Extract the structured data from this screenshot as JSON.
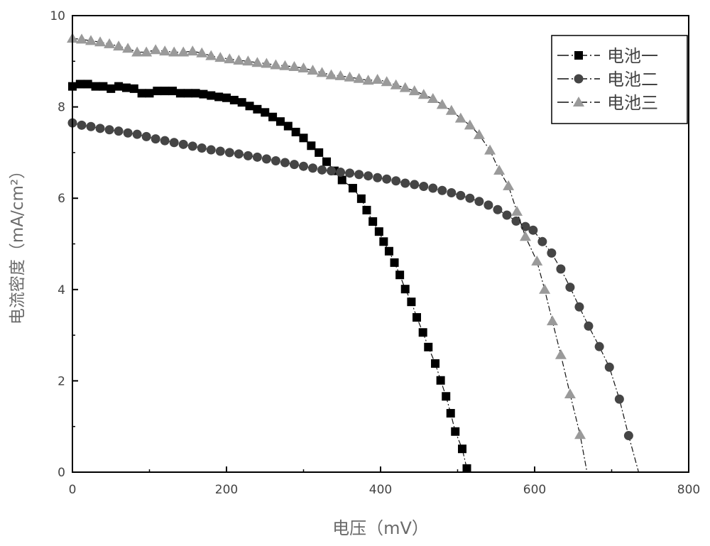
{
  "chart_data": {
    "type": "line",
    "title": "",
    "xlabel": "电压（mV）",
    "ylabel": "电流密度（mA/cm²）",
    "xlim": [
      0,
      800
    ],
    "ylim": [
      0,
      10
    ],
    "xticks": [
      "0",
      "200",
      "400",
      "600",
      "800"
    ],
    "yticks": [
      "0",
      "2",
      "4",
      "6",
      "8",
      "10"
    ],
    "grid": false,
    "legend_position": "top-right",
    "series": [
      {
        "name": "电池一",
        "marker": "square",
        "color": "#000000",
        "x": [
          0,
          10,
          20,
          30,
          40,
          50,
          60,
          70,
          80,
          90,
          100,
          110,
          120,
          130,
          140,
          150,
          160,
          170,
          180,
          190,
          200,
          210,
          220,
          230,
          240,
          250,
          260,
          270,
          280,
          290,
          300,
          310,
          320,
          330,
          340,
          350,
          364,
          375,
          382,
          390,
          398,
          404,
          411,
          418,
          425,
          432,
          440,
          447,
          455,
          462,
          471,
          478,
          485,
          491,
          497,
          506,
          512
        ],
        "y": [
          8.45,
          8.5,
          8.5,
          8.45,
          8.45,
          8.4,
          8.45,
          8.42,
          8.4,
          8.3,
          8.3,
          8.35,
          8.35,
          8.35,
          8.3,
          8.3,
          8.3,
          8.28,
          8.25,
          8.22,
          8.2,
          8.15,
          8.1,
          8.02,
          7.95,
          7.88,
          7.78,
          7.68,
          7.58,
          7.45,
          7.32,
          7.15,
          7.0,
          6.8,
          6.6,
          6.4,
          6.22,
          5.99,
          5.74,
          5.49,
          5.27,
          5.05,
          4.84,
          4.59,
          4.32,
          4.01,
          3.73,
          3.39,
          3.06,
          2.74,
          2.38,
          2.01,
          1.66,
          1.29,
          0.89,
          0.51,
          0.08
        ]
      },
      {
        "name": "电池二",
        "marker": "circle",
        "color": "#454545",
        "x": [
          0,
          12,
          24,
          36,
          48,
          60,
          72,
          84,
          96,
          108,
          120,
          132,
          144,
          156,
          168,
          180,
          192,
          204,
          216,
          228,
          240,
          252,
          264,
          276,
          288,
          300,
          312,
          324,
          336,
          348,
          360,
          372,
          384,
          396,
          408,
          420,
          432,
          444,
          456,
          468,
          480,
          492,
          504,
          516,
          528,
          540,
          552,
          564,
          576,
          588,
          598,
          610,
          622,
          634,
          646,
          658,
          670,
          684,
          697,
          710,
          722
        ],
        "y": [
          7.65,
          7.6,
          7.57,
          7.53,
          7.5,
          7.47,
          7.43,
          7.4,
          7.35,
          7.3,
          7.26,
          7.22,
          7.18,
          7.14,
          7.1,
          7.06,
          7.03,
          7.0,
          6.97,
          6.93,
          6.9,
          6.86,
          6.82,
          6.78,
          6.74,
          6.7,
          6.66,
          6.62,
          6.6,
          6.57,
          6.55,
          6.52,
          6.49,
          6.45,
          6.42,
          6.38,
          6.33,
          6.3,
          6.26,
          6.22,
          6.17,
          6.12,
          6.06,
          6.0,
          5.93,
          5.85,
          5.75,
          5.63,
          5.5,
          5.38,
          5.3,
          5.05,
          4.8,
          4.45,
          4.05,
          3.62,
          3.2,
          2.75,
          2.3,
          1.6,
          0.8
        ],
        "line_end": [
          735,
          0
        ]
      },
      {
        "name": "电池三",
        "marker": "triangle",
        "color": "#9a9a9a",
        "x": [
          0,
          12,
          24,
          36,
          48,
          60,
          72,
          84,
          96,
          108,
          120,
          132,
          144,
          156,
          168,
          180,
          192,
          204,
          216,
          228,
          240,
          252,
          264,
          276,
          288,
          300,
          312,
          324,
          336,
          348,
          360,
          372,
          384,
          396,
          408,
          420,
          432,
          444,
          456,
          468,
          480,
          492,
          504,
          516,
          528,
          542,
          554,
          566,
          577,
          588,
          603,
          613,
          623,
          634,
          646,
          659
        ],
        "y": [
          9.5,
          9.48,
          9.45,
          9.42,
          9.38,
          9.33,
          9.28,
          9.2,
          9.2,
          9.25,
          9.22,
          9.2,
          9.2,
          9.22,
          9.18,
          9.12,
          9.08,
          9.05,
          9.02,
          9.0,
          8.97,
          8.95,
          8.92,
          8.9,
          8.88,
          8.85,
          8.8,
          8.75,
          8.7,
          8.68,
          8.65,
          8.62,
          8.58,
          8.6,
          8.55,
          8.48,
          8.42,
          8.35,
          8.27,
          8.18,
          8.05,
          7.92,
          7.75,
          7.6,
          7.39,
          7.05,
          6.61,
          6.27,
          5.71,
          5.16,
          4.62,
          4.0,
          3.31,
          2.57,
          1.71,
          0.82
        ],
        "line_end": [
          668,
          0
        ]
      }
    ]
  }
}
